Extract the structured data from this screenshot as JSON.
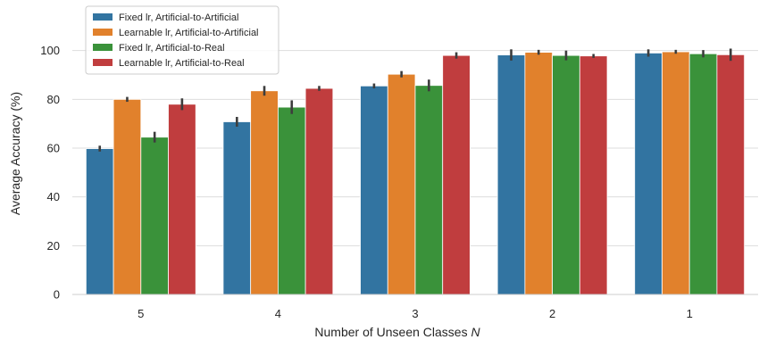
{
  "chart_data": {
    "type": "bar",
    "title": "",
    "xlabel": "Number of Unseen Classes ",
    "xlabel_var": "N",
    "ylabel": "Average Accuracy (%)",
    "categories": [
      "5",
      "4",
      "3",
      "2",
      "1"
    ],
    "ylim": [
      0,
      120
    ],
    "yticks": [
      0,
      20,
      40,
      60,
      80,
      100
    ],
    "grid": true,
    "legend_position": "upper-left",
    "series": [
      {
        "name": "Fixed lr, Artificial-to-Artificial",
        "color": "#3274a1",
        "values": [
          59.8,
          70.8,
          85.5,
          98.2,
          99.0
        ],
        "err": [
          1.2,
          2.0,
          1.0,
          2.3,
          1.5
        ]
      },
      {
        "name": "Learnable lr, Artificial-to-Artificial",
        "color": "#e1812c",
        "values": [
          80.0,
          83.5,
          90.3,
          99.3,
          99.5
        ],
        "err": [
          1.0,
          2.0,
          1.3,
          1.0,
          0.8
        ]
      },
      {
        "name": "Fixed lr, Artificial-to-Real",
        "color": "#3a923a",
        "values": [
          64.5,
          76.8,
          85.7,
          98.0,
          98.7
        ],
        "err": [
          2.2,
          2.8,
          2.4,
          2.0,
          1.5
        ]
      },
      {
        "name": "Learnable lr, Artificial-to-Real",
        "color": "#c03d3e",
        "values": [
          78.0,
          84.5,
          98.0,
          97.8,
          98.3
        ],
        "err": [
          2.4,
          1.0,
          1.3,
          0.8,
          2.5
        ]
      }
    ]
  }
}
